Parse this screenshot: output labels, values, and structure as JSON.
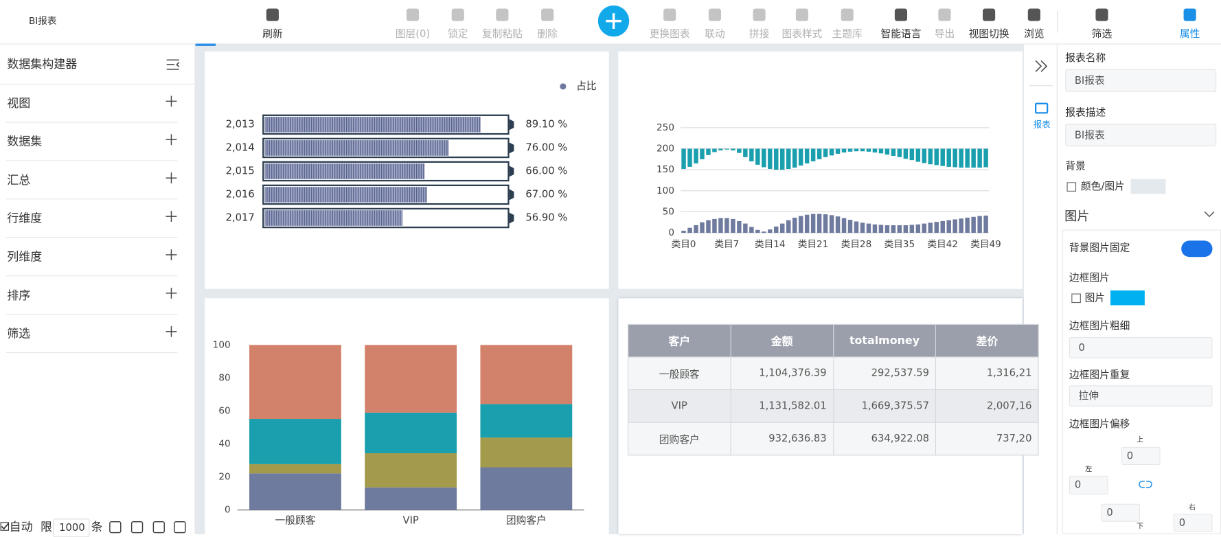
{
  "toolbar": {
    "title": "BI报表",
    "items": [
      "刷新",
      "图层(0)",
      "锁定",
      "复制粘贴",
      "删除",
      "更换图表",
      "联动",
      "拼接",
      "图表样式",
      "主题库",
      "智能语言",
      "导出",
      "视图切换",
      "浏览",
      "筛选",
      "属性"
    ]
  },
  "sidebar": {
    "title": "数据集构建器",
    "items": [
      "视图",
      "数据集",
      "汇总",
      "行维度",
      "列维度",
      "排序",
      "筛选"
    ],
    "footer": {
      "auto": "自动",
      "limit_label": "限",
      "limit": 1000,
      "unit": "条"
    }
  },
  "chart_data": [
    {
      "type": "bar",
      "orientation": "horizontal",
      "categories": [
        "2,013",
        "2,014",
        "2,015",
        "2,016",
        "2,017"
      ],
      "series": [
        {
          "name": "占比",
          "color": "#6f78a0",
          "values": [
            89.1,
            76,
            66,
            67,
            56.9
          ],
          "value_labels": [
            "89.10 %",
            "76.00 %",
            "66.00 %",
            "67.00 %",
            "56.90 %"
          ]
        }
      ],
      "xlim": [
        0,
        100
      ]
    },
    {
      "type": "bar",
      "categories": [
        "类目0",
        null,
        null,
        null,
        null,
        null,
        null,
        "类目7",
        null,
        null,
        null,
        null,
        null,
        null,
        "类目14",
        null,
        null,
        null,
        null,
        null,
        null,
        "类目21",
        null,
        null,
        null,
        null,
        null,
        null,
        "类目28",
        null,
        null,
        null,
        null,
        null,
        null,
        "类目35",
        null,
        null,
        null,
        null,
        null,
        null,
        "类目42",
        null,
        null,
        null,
        null,
        null,
        null,
        "类目49"
      ],
      "series": [
        {
          "color": "#6e7a9e",
          "values": [
            5,
            12,
            18,
            25,
            30,
            33,
            35,
            35,
            33,
            28,
            22,
            14,
            7,
            3,
            8,
            15,
            22,
            30,
            36,
            40,
            43,
            45,
            45,
            44,
            42,
            39,
            35,
            31,
            27,
            24,
            22,
            20,
            19,
            18,
            18,
            18,
            18,
            19,
            20,
            22,
            24,
            26,
            28,
            30,
            32,
            34,
            36,
            38,
            40,
            41
          ]
        },
        {
          "color": "#1a9fae",
          "base": 200,
          "values": [
            152,
            157,
            165,
            175,
            185,
            192,
            196,
            198,
            196,
            190,
            180,
            170,
            162,
            156,
            152,
            150,
            150,
            152,
            155,
            160,
            165,
            170,
            175,
            180,
            184,
            188,
            191,
            193,
            194,
            194,
            193,
            191,
            189,
            186,
            183,
            180,
            176,
            173,
            169,
            166,
            163,
            161,
            159,
            157,
            156,
            155,
            155,
            155,
            155,
            156
          ]
        }
      ],
      "ylim": [
        0,
        250
      ],
      "yticks": [
        0,
        50,
        100,
        150,
        200,
        250
      ],
      "grid": true
    },
    {
      "type": "bar",
      "stacked": true,
      "categories": [
        "一般顾客",
        "VIP",
        "团购客户"
      ],
      "series": [
        {
          "color": "#6e7a9e",
          "values": [
            22.2,
            13.7,
            25.9
          ]
        },
        {
          "color": "#a39a4b",
          "values": [
            5.6,
            20.7,
            18.0
          ]
        },
        {
          "color": "#1a9fae",
          "values": [
            27.4,
            24.6,
            20.3
          ]
        },
        {
          "color": "#d2826a",
          "values": [
            44.8,
            41.0,
            35.8
          ]
        }
      ],
      "ylim": [
        0,
        100
      ],
      "yticks": [
        0,
        20,
        40,
        60,
        80,
        100
      ]
    }
  ],
  "table": {
    "header": [
      "客户",
      "金额",
      "totalmoney",
      "差价"
    ],
    "rows": [
      [
        "一般顾客",
        "1,104,376.39",
        "292,537.59",
        "1,316,21"
      ],
      [
        "VIP",
        "1,131,582.01",
        "1,669,375.57",
        "2,007,16"
      ],
      [
        "团购客户",
        "932,636.83",
        "634,922.08",
        "737,20"
      ]
    ]
  },
  "side_tab": "报表",
  "properties": {
    "name_label": "报表名称",
    "name": "BI报表",
    "desc_label": "报表描述",
    "desc": "BI报表",
    "bg_label": "背景",
    "bg_option": "颜色/图片",
    "image_section": "图片",
    "bg_fixed": "背景图片固定",
    "border_image": "边框图片",
    "border_image_option": "图片",
    "border_width_label": "边框图片粗细",
    "border_width": 0,
    "border_repeat_label": "边框图片重复",
    "border_repeat": "拉伸",
    "border_offset_label": "边框图片偏移",
    "offset": {
      "top_label": "上",
      "top": 0,
      "left_label": "左",
      "left": 0,
      "bottom": 0,
      "bottom_label": "下",
      "right_label": "右",
      "right": 0
    }
  }
}
